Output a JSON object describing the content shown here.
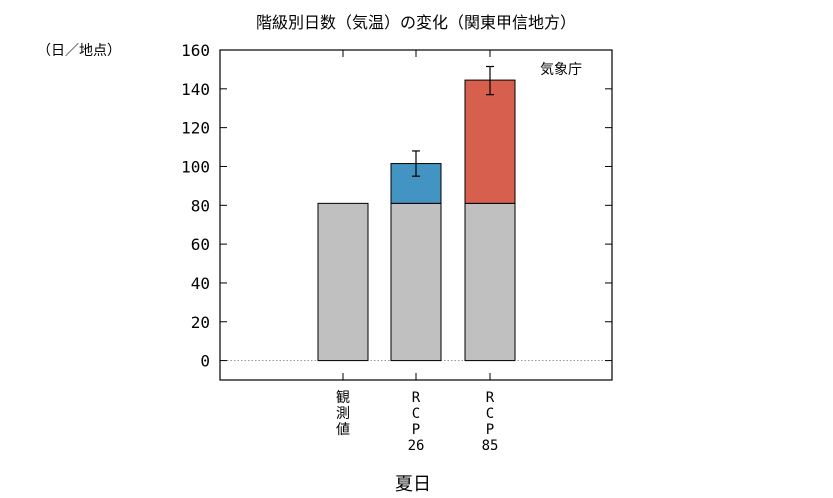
{
  "chart_data": {
    "type": "bar",
    "title": "階級別日数（気温）の変化（関東甲信地方）",
    "unit_label": "（日／地点）",
    "source_label": "気象庁",
    "xlabel": "夏日",
    "ylim": [
      -10,
      160
    ],
    "yticks": [
      0,
      20,
      40,
      60,
      80,
      100,
      120,
      140,
      160
    ],
    "baseline_dotted": true,
    "categories": [
      {
        "label_lines": [
          "観",
          "測",
          "値"
        ]
      },
      {
        "label_lines": [
          "R",
          "C",
          "P",
          "26"
        ]
      },
      {
        "label_lines": [
          "R",
          "C",
          "P",
          "85"
        ]
      }
    ],
    "series": [
      {
        "values": [
          81,
          81,
          81
        ],
        "color": "#c0c0c0"
      },
      {
        "values": [
          0,
          20.5,
          63.5
        ],
        "colors": [
          "#c0c0c0",
          "#4393c3",
          "#d6604d"
        ]
      }
    ],
    "totals": [
      81,
      101.5,
      144.5
    ],
    "error_bars": [
      null,
      {
        "low": 95,
        "high": 108
      },
      {
        "low": 137,
        "high": 151.5
      }
    ]
  }
}
